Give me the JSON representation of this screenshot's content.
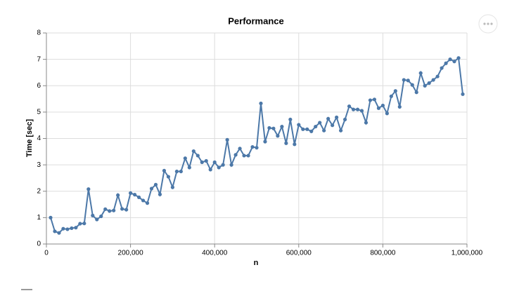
{
  "chart_data": {
    "type": "line",
    "title": "Performance",
    "x_label": "n",
    "y_label": "Time [sec]",
    "x": [
      10000,
      20000,
      30000,
      40000,
      50000,
      60000,
      70000,
      80000,
      90000,
      100000,
      110000,
      120000,
      130000,
      140000,
      150000,
      160000,
      170000,
      180000,
      190000,
      200000,
      210000,
      220000,
      230000,
      240000,
      250000,
      260000,
      270000,
      280000,
      290000,
      300000,
      310000,
      320000,
      330000,
      340000,
      350000,
      360000,
      370000,
      380000,
      390000,
      400000,
      410000,
      420000,
      430000,
      440000,
      450000,
      460000,
      470000,
      480000,
      490000,
      500000,
      510000,
      520000,
      530000,
      540000,
      550000,
      560000,
      570000,
      580000,
      590000,
      600000,
      610000,
      620000,
      630000,
      640000,
      650000,
      660000,
      670000,
      680000,
      690000,
      700000,
      710000,
      720000,
      730000,
      740000,
      750000,
      760000,
      770000,
      780000,
      790000,
      800000,
      810000,
      820000,
      830000,
      840000,
      850000,
      860000,
      870000,
      880000,
      890000,
      900000,
      910000,
      920000,
      930000,
      940000,
      950000,
      960000,
      970000,
      980000,
      990000
    ],
    "series": [
      {
        "name": "Time",
        "color": "#4c78a8",
        "values": [
          1.0,
          0.48,
          0.42,
          0.58,
          0.56,
          0.6,
          0.62,
          0.77,
          0.78,
          2.08,
          1.08,
          0.93,
          1.05,
          1.32,
          1.25,
          1.27,
          1.85,
          1.33,
          1.3,
          1.93,
          1.87,
          1.77,
          1.65,
          1.55,
          2.1,
          2.25,
          1.88,
          2.78,
          2.55,
          2.15,
          2.75,
          2.75,
          3.25,
          2.9,
          3.52,
          3.35,
          3.1,
          3.15,
          2.82,
          3.1,
          2.9,
          3.0,
          3.95,
          3.0,
          3.38,
          3.62,
          3.35,
          3.35,
          3.68,
          3.65,
          5.33,
          3.88,
          4.4,
          4.38,
          4.1,
          4.45,
          3.82,
          4.72,
          3.78,
          4.52,
          4.35,
          4.35,
          4.27,
          4.45,
          4.6,
          4.3,
          4.75,
          4.5,
          4.8,
          4.3,
          4.72,
          5.22,
          5.1,
          5.1,
          5.05,
          4.6,
          5.45,
          5.48,
          5.15,
          5.25,
          4.95,
          5.6,
          5.8,
          5.2,
          6.22,
          6.2,
          6.03,
          5.75,
          6.48,
          6.0,
          6.1,
          6.22,
          6.35,
          6.67,
          6.85,
          7.0,
          6.92,
          7.05,
          5.68
        ]
      }
    ],
    "xlim": [
      0,
      1000000
    ],
    "xticks": [
      0,
      {
        "value": 200000,
        "label": "200,000"
      },
      {
        "value": 400000,
        "label": "400,000"
      },
      {
        "value": 600000,
        "label": "600,000"
      },
      {
        "value": 800000,
        "label": "800,000"
      },
      {
        "value": 1000000,
        "label": "1,000,000"
      }
    ],
    "ylim": [
      0,
      8
    ],
    "yticks": [
      0,
      1,
      2,
      3,
      4,
      5,
      6,
      7,
      8
    ],
    "grid": true
  }
}
